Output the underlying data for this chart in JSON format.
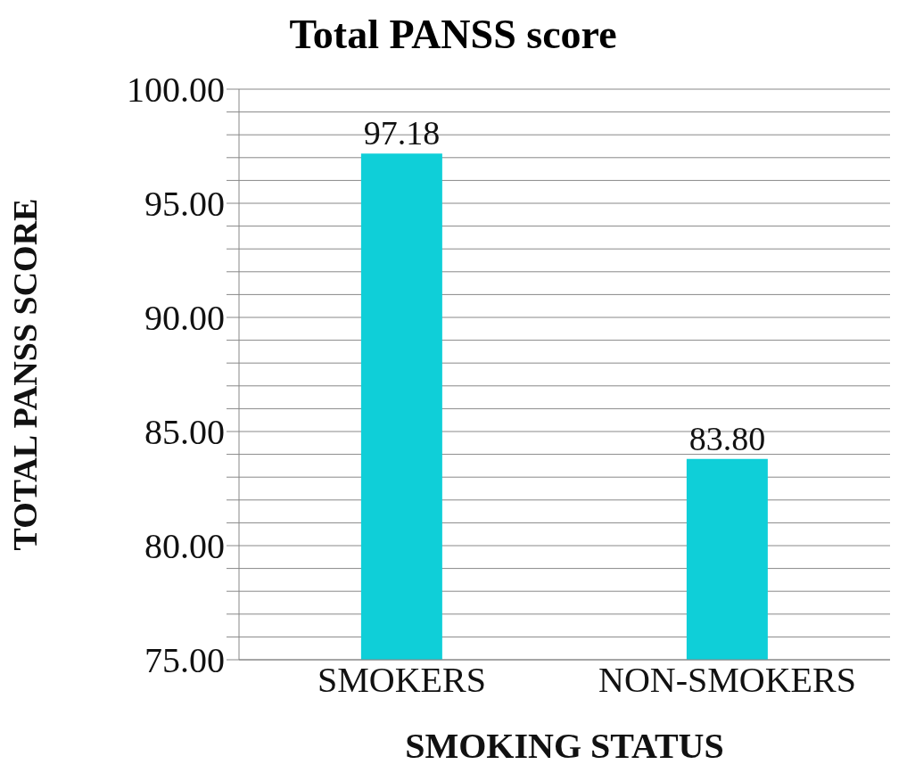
{
  "chart_data": {
    "type": "bar",
    "title": "Total PANSS score",
    "xlabel": "SMOKING STATUS",
    "ylabel": "TOTAL PANSS SCORE",
    "categories": [
      "SMOKERS",
      "NON-SMOKERS"
    ],
    "series": [
      {
        "color": "#0fcfd8",
        "values": [
          97.18,
          83.8
        ],
        "value_labels": [
          "97.18",
          "83.80"
        ]
      }
    ],
    "ylim": [
      75,
      100
    ],
    "yticks": [
      {
        "value": 75,
        "label": "75.00"
      },
      {
        "value": 76,
        "label": null
      },
      {
        "value": 77,
        "label": null
      },
      {
        "value": 78,
        "label": null
      },
      {
        "value": 79,
        "label": null
      },
      {
        "value": 80,
        "label": "80.00"
      },
      {
        "value": 81,
        "label": null
      },
      {
        "value": 82,
        "label": null
      },
      {
        "value": 83,
        "label": null
      },
      {
        "value": 84,
        "label": null
      },
      {
        "value": 85,
        "label": "85.00"
      },
      {
        "value": 86,
        "label": null
      },
      {
        "value": 87,
        "label": null
      },
      {
        "value": 88,
        "label": null
      },
      {
        "value": 89,
        "label": null
      },
      {
        "value": 90,
        "label": "90.00"
      },
      {
        "value": 91,
        "label": null
      },
      {
        "value": 92,
        "label": null
      },
      {
        "value": 93,
        "label": null
      },
      {
        "value": 94,
        "label": null
      },
      {
        "value": 95,
        "label": "95.00"
      },
      {
        "value": 96,
        "label": null
      },
      {
        "value": 97,
        "label": null
      },
      {
        "value": 98,
        "label": null
      },
      {
        "value": 99,
        "label": null
      },
      {
        "value": 100,
        "label": "100.00"
      }
    ],
    "grid": "y",
    "legend": false
  }
}
